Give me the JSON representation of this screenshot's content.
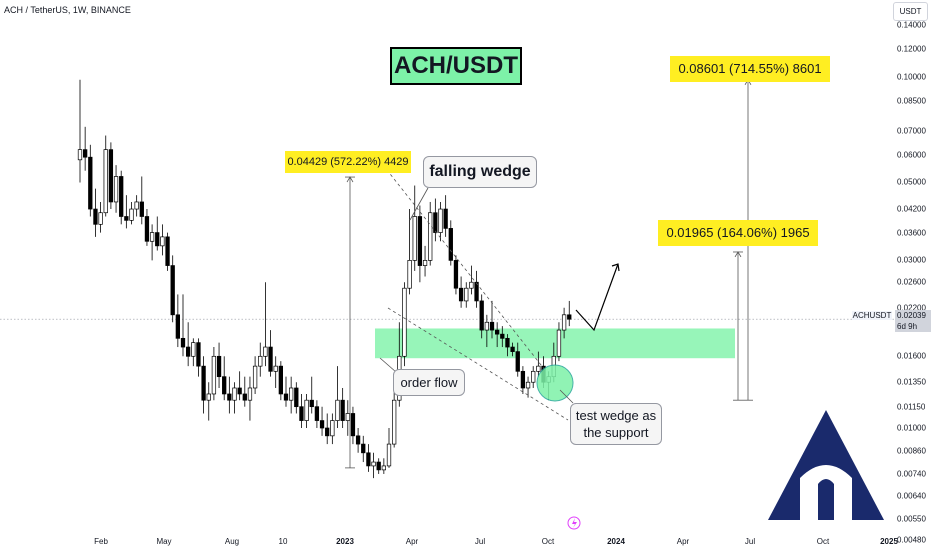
{
  "header": {
    "symbol_line": "ACH / TetherUS, 1W, BINANCE"
  },
  "axis": {
    "unit_label": "USDT",
    "price_ticks": [
      "0.14000",
      "0.12000",
      "0.10000",
      "0.08500",
      "0.07000",
      "0.06000",
      "0.05000",
      "0.04200",
      "0.03600",
      "0.03000",
      "0.02600",
      "0.02200",
      "0.01600",
      "0.01350",
      "0.01150",
      "0.01000",
      "0.00860",
      "0.00740",
      "0.00640",
      "0.00550",
      "0.00480"
    ],
    "time_ticks": [
      "Feb",
      "May",
      "Aug",
      "10",
      "2023",
      "Apr",
      "Jul",
      "Oct",
      "2024",
      "Apr",
      "Jul",
      "Oct",
      "2025"
    ],
    "bold_time_ticks": [
      "2023",
      "2024",
      "2025"
    ]
  },
  "current_price": {
    "symbol_tag": "ACHUSDT",
    "value": "0.02039",
    "countdown": "6d 9h"
  },
  "annotations": {
    "title": "ACH/USDT",
    "measure_1": "0.04429 (572.22%) 4429",
    "measure_2": "0.01965 (164.06%) 1965",
    "measure_3": "0.08601 (714.55%) 8601",
    "falling_wedge": "falling wedge",
    "order_flow": "order flow",
    "test_wedge_1": "test wedge as",
    "test_wedge_2": "the support"
  },
  "colors": {
    "up": "#26a69a",
    "down": "#ef5350",
    "candle_body": "#000000",
    "zone": "#7df2a8",
    "label_bg": "#ffee22",
    "circle": "#7df2a8"
  },
  "chart_data": {
    "type": "candlestick",
    "scale": "log",
    "interval": "1W",
    "ylim": [
      0.0048,
      0.145
    ],
    "candles": [
      {
        "o": 0.058,
        "h": 0.098,
        "l": 0.05,
        "c": 0.062
      },
      {
        "o": 0.062,
        "h": 0.072,
        "l": 0.054,
        "c": 0.059
      },
      {
        "o": 0.059,
        "h": 0.064,
        "l": 0.04,
        "c": 0.042
      },
      {
        "o": 0.042,
        "h": 0.048,
        "l": 0.035,
        "c": 0.038
      },
      {
        "o": 0.038,
        "h": 0.044,
        "l": 0.036,
        "c": 0.041
      },
      {
        "o": 0.041,
        "h": 0.068,
        "l": 0.04,
        "c": 0.062
      },
      {
        "o": 0.062,
        "h": 0.065,
        "l": 0.042,
        "c": 0.044
      },
      {
        "o": 0.044,
        "h": 0.056,
        "l": 0.041,
        "c": 0.052
      },
      {
        "o": 0.052,
        "h": 0.054,
        "l": 0.038,
        "c": 0.04
      },
      {
        "o": 0.04,
        "h": 0.046,
        "l": 0.037,
        "c": 0.039
      },
      {
        "o": 0.039,
        "h": 0.044,
        "l": 0.038,
        "c": 0.042
      },
      {
        "o": 0.042,
        "h": 0.046,
        "l": 0.04,
        "c": 0.044
      },
      {
        "o": 0.044,
        "h": 0.052,
        "l": 0.038,
        "c": 0.04
      },
      {
        "o": 0.04,
        "h": 0.042,
        "l": 0.033,
        "c": 0.034
      },
      {
        "o": 0.034,
        "h": 0.038,
        "l": 0.03,
        "c": 0.036
      },
      {
        "o": 0.036,
        "h": 0.04,
        "l": 0.032,
        "c": 0.033
      },
      {
        "o": 0.033,
        "h": 0.038,
        "l": 0.031,
        "c": 0.035
      },
      {
        "o": 0.035,
        "h": 0.036,
        "l": 0.028,
        "c": 0.029
      },
      {
        "o": 0.029,
        "h": 0.031,
        "l": 0.02,
        "c": 0.021
      },
      {
        "o": 0.021,
        "h": 0.024,
        "l": 0.017,
        "c": 0.018
      },
      {
        "o": 0.018,
        "h": 0.024,
        "l": 0.016,
        "c": 0.017
      },
      {
        "o": 0.017,
        "h": 0.02,
        "l": 0.015,
        "c": 0.016
      },
      {
        "o": 0.016,
        "h": 0.018,
        "l": 0.015,
        "c": 0.0175
      },
      {
        "o": 0.0175,
        "h": 0.018,
        "l": 0.014,
        "c": 0.015
      },
      {
        "o": 0.015,
        "h": 0.016,
        "l": 0.011,
        "c": 0.012
      },
      {
        "o": 0.012,
        "h": 0.0135,
        "l": 0.0105,
        "c": 0.0125
      },
      {
        "o": 0.0125,
        "h": 0.017,
        "l": 0.012,
        "c": 0.016
      },
      {
        "o": 0.016,
        "h": 0.0175,
        "l": 0.013,
        "c": 0.014
      },
      {
        "o": 0.014,
        "h": 0.016,
        "l": 0.012,
        "c": 0.0125
      },
      {
        "o": 0.0125,
        "h": 0.014,
        "l": 0.011,
        "c": 0.012
      },
      {
        "o": 0.012,
        "h": 0.0135,
        "l": 0.011,
        "c": 0.013
      },
      {
        "o": 0.013,
        "h": 0.0145,
        "l": 0.012,
        "c": 0.0125
      },
      {
        "o": 0.0125,
        "h": 0.014,
        "l": 0.0115,
        "c": 0.012
      },
      {
        "o": 0.012,
        "h": 0.014,
        "l": 0.0105,
        "c": 0.013
      },
      {
        "o": 0.013,
        "h": 0.016,
        "l": 0.0125,
        "c": 0.015
      },
      {
        "o": 0.015,
        "h": 0.0175,
        "l": 0.014,
        "c": 0.016
      },
      {
        "o": 0.016,
        "h": 0.026,
        "l": 0.015,
        "c": 0.017
      },
      {
        "o": 0.017,
        "h": 0.019,
        "l": 0.014,
        "c": 0.0145
      },
      {
        "o": 0.0145,
        "h": 0.016,
        "l": 0.013,
        "c": 0.015
      },
      {
        "o": 0.015,
        "h": 0.0155,
        "l": 0.012,
        "c": 0.0125
      },
      {
        "o": 0.0125,
        "h": 0.014,
        "l": 0.0115,
        "c": 0.012
      },
      {
        "o": 0.012,
        "h": 0.014,
        "l": 0.011,
        "c": 0.013
      },
      {
        "o": 0.013,
        "h": 0.0135,
        "l": 0.011,
        "c": 0.0115
      },
      {
        "o": 0.0115,
        "h": 0.0125,
        "l": 0.01,
        "c": 0.0105
      },
      {
        "o": 0.0105,
        "h": 0.0125,
        "l": 0.01,
        "c": 0.012
      },
      {
        "o": 0.012,
        "h": 0.014,
        "l": 0.011,
        "c": 0.0115
      },
      {
        "o": 0.0115,
        "h": 0.012,
        "l": 0.01,
        "c": 0.0105
      },
      {
        "o": 0.0105,
        "h": 0.0115,
        "l": 0.0095,
        "c": 0.01
      },
      {
        "o": 0.01,
        "h": 0.011,
        "l": 0.009,
        "c": 0.0095
      },
      {
        "o": 0.0095,
        "h": 0.011,
        "l": 0.009,
        "c": 0.0105
      },
      {
        "o": 0.0105,
        "h": 0.015,
        "l": 0.01,
        "c": 0.012
      },
      {
        "o": 0.012,
        "h": 0.013,
        "l": 0.01,
        "c": 0.0105
      },
      {
        "o": 0.0105,
        "h": 0.012,
        "l": 0.0095,
        "c": 0.011
      },
      {
        "o": 0.011,
        "h": 0.0115,
        "l": 0.009,
        "c": 0.0095
      },
      {
        "o": 0.0095,
        "h": 0.01,
        "l": 0.0085,
        "c": 0.009
      },
      {
        "o": 0.009,
        "h": 0.0095,
        "l": 0.008,
        "c": 0.0085
      },
      {
        "o": 0.0085,
        "h": 0.009,
        "l": 0.0075,
        "c": 0.0078
      },
      {
        "o": 0.0078,
        "h": 0.0085,
        "l": 0.0072,
        "c": 0.008
      },
      {
        "o": 0.008,
        "h": 0.0082,
        "l": 0.0074,
        "c": 0.0076
      },
      {
        "o": 0.0076,
        "h": 0.0082,
        "l": 0.0074,
        "c": 0.0078
      },
      {
        "o": 0.0078,
        "h": 0.01,
        "l": 0.0077,
        "c": 0.009
      },
      {
        "o": 0.009,
        "h": 0.013,
        "l": 0.0088,
        "c": 0.012
      },
      {
        "o": 0.012,
        "h": 0.02,
        "l": 0.0115,
        "c": 0.016
      },
      {
        "o": 0.016,
        "h": 0.026,
        "l": 0.015,
        "c": 0.025
      },
      {
        "o": 0.025,
        "h": 0.042,
        "l": 0.024,
        "c": 0.03
      },
      {
        "o": 0.03,
        "h": 0.049,
        "l": 0.028,
        "c": 0.04
      },
      {
        "o": 0.04,
        "h": 0.043,
        "l": 0.026,
        "c": 0.029
      },
      {
        "o": 0.029,
        "h": 0.033,
        "l": 0.027,
        "c": 0.03
      },
      {
        "o": 0.03,
        "h": 0.044,
        "l": 0.029,
        "c": 0.041
      },
      {
        "o": 0.041,
        "h": 0.045,
        "l": 0.034,
        "c": 0.036
      },
      {
        "o": 0.036,
        "h": 0.044,
        "l": 0.034,
        "c": 0.042
      },
      {
        "o": 0.042,
        "h": 0.046,
        "l": 0.035,
        "c": 0.037
      },
      {
        "o": 0.037,
        "h": 0.039,
        "l": 0.029,
        "c": 0.03
      },
      {
        "o": 0.03,
        "h": 0.031,
        "l": 0.024,
        "c": 0.025
      },
      {
        "o": 0.025,
        "h": 0.027,
        "l": 0.022,
        "c": 0.023
      },
      {
        "o": 0.023,
        "h": 0.026,
        "l": 0.022,
        "c": 0.025
      },
      {
        "o": 0.025,
        "h": 0.029,
        "l": 0.024,
        "c": 0.026
      },
      {
        "o": 0.026,
        "h": 0.028,
        "l": 0.022,
        "c": 0.023
      },
      {
        "o": 0.023,
        "h": 0.024,
        "l": 0.018,
        "c": 0.019
      },
      {
        "o": 0.019,
        "h": 0.021,
        "l": 0.017,
        "c": 0.02
      },
      {
        "o": 0.02,
        "h": 0.023,
        "l": 0.018,
        "c": 0.019
      },
      {
        "o": 0.019,
        "h": 0.02,
        "l": 0.017,
        "c": 0.0185
      },
      {
        "o": 0.0185,
        "h": 0.0195,
        "l": 0.017,
        "c": 0.018
      },
      {
        "o": 0.018,
        "h": 0.0185,
        "l": 0.016,
        "c": 0.017
      },
      {
        "o": 0.017,
        "h": 0.0175,
        "l": 0.016,
        "c": 0.0165
      },
      {
        "o": 0.0165,
        "h": 0.0175,
        "l": 0.014,
        "c": 0.0145
      },
      {
        "o": 0.0145,
        "h": 0.015,
        "l": 0.0125,
        "c": 0.013
      },
      {
        "o": 0.013,
        "h": 0.014,
        "l": 0.0122,
        "c": 0.0135
      },
      {
        "o": 0.0135,
        "h": 0.015,
        "l": 0.013,
        "c": 0.0145
      },
      {
        "o": 0.0145,
        "h": 0.0165,
        "l": 0.014,
        "c": 0.015
      },
      {
        "o": 0.015,
        "h": 0.016,
        "l": 0.013,
        "c": 0.0135
      },
      {
        "o": 0.0135,
        "h": 0.0145,
        "l": 0.012,
        "c": 0.014
      },
      {
        "o": 0.014,
        "h": 0.0175,
        "l": 0.0135,
        "c": 0.016
      },
      {
        "o": 0.016,
        "h": 0.02,
        "l": 0.0155,
        "c": 0.019
      },
      {
        "o": 0.019,
        "h": 0.022,
        "l": 0.018,
        "c": 0.021
      },
      {
        "o": 0.021,
        "h": 0.023,
        "l": 0.0195,
        "c": 0.0204
      }
    ],
    "support_zone": {
      "low": 0.0158,
      "high": 0.0192
    },
    "measurements": [
      {
        "label": "0.04429 (572.22%) 4429",
        "from": 0.0077,
        "to": 0.0518
      },
      {
        "label": "0.01965 (164.06%) 1965",
        "from": 0.012,
        "to": 0.0317
      },
      {
        "label": "0.08601 (714.55%) 8601",
        "from": 0.012,
        "to": 0.098
      }
    ]
  }
}
